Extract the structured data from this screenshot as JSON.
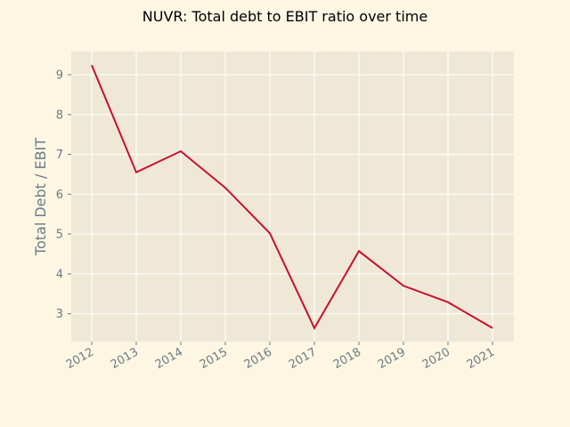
{
  "chart_data": {
    "type": "line",
    "title": "NUVR: Total debt to EBIT ratio over time",
    "xlabel": "",
    "ylabel": "Total Debt / EBIT",
    "categories": [
      "2012",
      "2013",
      "2014",
      "2015",
      "2016",
      "2017",
      "2018",
      "2019",
      "2020",
      "2021"
    ],
    "series": [
      {
        "values": [
          9.24,
          6.55,
          7.08,
          6.16,
          5.02,
          2.64,
          4.57,
          3.7,
          3.29,
          2.64
        ]
      }
    ],
    "yticks": [
      3,
      4,
      5,
      6,
      7,
      8,
      9
    ],
    "ylim": [
      2.3,
      9.58
    ],
    "grid": true,
    "colors": {
      "line": "#c8102e",
      "plot_background": "#efe8d6",
      "figure_background": "#fdf6e3",
      "grid": "#ffffff",
      "tick_text": "#6b7b83"
    }
  }
}
